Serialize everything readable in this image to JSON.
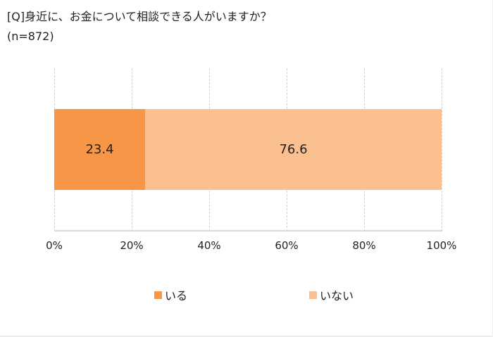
{
  "chart_data": {
    "type": "bar",
    "orientation": "horizontal",
    "stacked": true,
    "title": "[Q]身近に、お金について相談できる人がいますか？",
    "subtitle": "(n=872)",
    "categories": [
      ""
    ],
    "series": [
      {
        "name": "いる",
        "values": [
          23.4
        ],
        "color": "#F79646"
      },
      {
        "name": "いない",
        "values": [
          76.6
        ],
        "color": "#FAC090"
      }
    ],
    "xlabel": "",
    "ylabel": "",
    "xlim": [
      0,
      100
    ],
    "x_ticks": [
      "0%",
      "20%",
      "40%",
      "60%",
      "80%",
      "100%"
    ],
    "grid": true,
    "legend_position": "bottom"
  },
  "header": {
    "title": "[Q]身近に、お金について相談できる人がいますか？",
    "sample": "(n=872)"
  },
  "bars": [
    {
      "label": "23.4",
      "value": 23.4,
      "color": "#F79646"
    },
    {
      "label": "76.6",
      "value": 76.6,
      "color": "#FAC090"
    }
  ],
  "axis": {
    "ticks": [
      "0%",
      "20%",
      "40%",
      "60%",
      "80%",
      "100%"
    ]
  },
  "legend": [
    {
      "label": "いる",
      "color": "#F79646"
    },
    {
      "label": "いない",
      "color": "#FAC090"
    }
  ]
}
